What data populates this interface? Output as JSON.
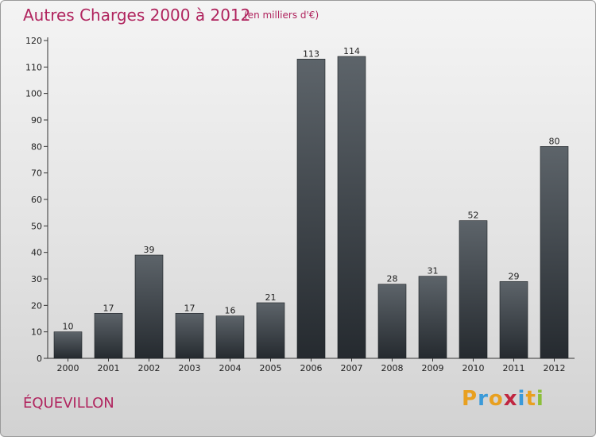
{
  "header": {
    "title": "Autres Charges 2000 à 2012",
    "subtitle": "(en milliers d'€)"
  },
  "footer": {
    "place": "ÉQUEVILLON",
    "logo_letters": [
      "P",
      "r",
      "o",
      "x",
      "i",
      "t",
      "i"
    ],
    "logo_colors": [
      "#e8a020",
      "#3a9ad9",
      "#e8a020",
      "#c02640",
      "#3a9ad9",
      "#e8a020",
      "#8bbf3a"
    ]
  },
  "colors": {
    "title": "#b0245e",
    "bar_top": "#5d646a",
    "bar_bottom": "#252a2f"
  },
  "chart_data": {
    "type": "bar",
    "title": "Autres Charges 2000 à 2012",
    "subtitle": "(en milliers d'€)",
    "categories": [
      "2000",
      "2001",
      "2002",
      "2003",
      "2004",
      "2005",
      "2006",
      "2007",
      "2008",
      "2009",
      "2010",
      "2011",
      "2012"
    ],
    "values": [
      10,
      17,
      39,
      17,
      16,
      21,
      113,
      114,
      28,
      31,
      52,
      29,
      80
    ],
    "ylim": [
      0,
      120
    ],
    "yticks": [
      0,
      10,
      20,
      30,
      40,
      50,
      60,
      70,
      80,
      90,
      100,
      110,
      120
    ],
    "grid": false,
    "data_labels": true
  }
}
